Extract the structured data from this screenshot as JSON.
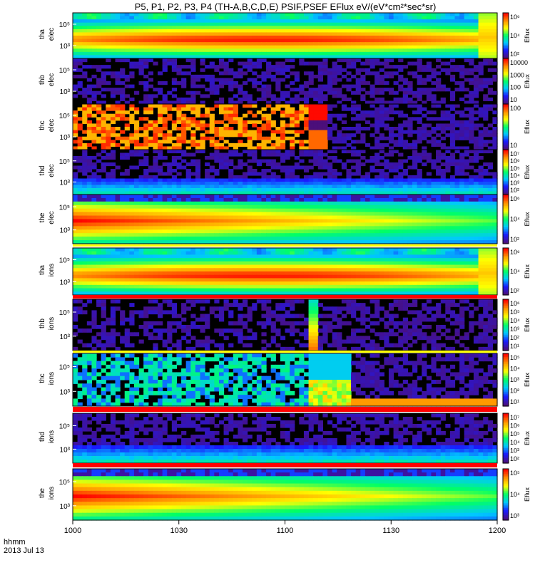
{
  "chart_data": {
    "type": "heatmap",
    "title": "P5, P1, P2, P3, P4  (TH-A,B,C,D,E) PSIF,PSEF EFlux eV/(eV*cm²*sec*sr)",
    "x_axis": {
      "ticks": [
        "1000",
        "1030",
        "1100",
        "1130",
        "1200"
      ],
      "range": [
        "10:00",
        "12:00"
      ],
      "label_line1": "hhmm",
      "label_line2": "2013 Jul 13"
    },
    "colors": {
      "scale": [
        "#4b0f7a",
        "#1a1aff",
        "#00c8ff",
        "#00ff66",
        "#ffff00",
        "#ff9000",
        "#ff0000"
      ]
    },
    "panels": [
      {
        "name": "tha elec",
        "ylabel": [
          "tha",
          "elec"
        ],
        "yticks": [
          "10⁵",
          "10³"
        ],
        "colorbar_ticks": [
          "10⁶",
          "10⁴",
          "10²"
        ],
        "colorbar_label": "Eflux",
        "pattern": "smooth-hot-center"
      },
      {
        "name": "thb elec",
        "ylabel": [
          "thb",
          "elec"
        ],
        "yticks": [
          "10⁵",
          "10³"
        ],
        "colorbar_ticks": [
          "10000",
          "1000",
          "100",
          "10"
        ],
        "colorbar_label": "Eflux",
        "pattern": "sparse-purple"
      },
      {
        "name": "thc elec",
        "ylabel": [
          "thc",
          "elec"
        ],
        "yticks": [
          "10⁵",
          "10³"
        ],
        "colorbar_ticks": [
          "100",
          "10"
        ],
        "colorbar_label": "Eflux",
        "pattern": "yellow-orange-blocks"
      },
      {
        "name": "thd elec",
        "ylabel": [
          "thd",
          "elec"
        ],
        "yticks": [
          "10⁵",
          "10³"
        ],
        "colorbar_ticks": [
          "10⁷",
          "10⁶",
          "10⁵",
          "10⁴",
          "10³",
          "10²"
        ],
        "colorbar_label": "Eflux",
        "pattern": "purple-blue-bottom"
      },
      {
        "name": "the elec",
        "ylabel": [
          "the",
          "elec"
        ],
        "yticks": [
          "10⁵",
          "10³"
        ],
        "colorbar_ticks": [
          "10⁶",
          "10⁴",
          "10²"
        ],
        "colorbar_label": "Eflux",
        "pattern": "red-left-green-right"
      },
      {
        "name": "tha ions",
        "ylabel": [
          "tha",
          "ions"
        ],
        "yticks": [
          "10⁵",
          "10³"
        ],
        "colorbar_ticks": [
          "10⁶",
          "10⁴",
          "10²"
        ],
        "colorbar_label": "Eflux",
        "pattern": "smooth-hot-center"
      },
      {
        "name": "thb ions",
        "ylabel": [
          "thb",
          "ions"
        ],
        "yticks": [
          "10⁵",
          "10³"
        ],
        "colorbar_ticks": [
          "10⁶",
          "10⁵",
          "10⁴",
          "10³",
          "10²",
          "10¹"
        ],
        "colorbar_label": "Eflux",
        "pattern": "sparse-purple-ions"
      },
      {
        "name": "thc ions",
        "ylabel": [
          "thc",
          "ions"
        ],
        "yticks": [
          "10⁵",
          "10³"
        ],
        "colorbar_ticks": [
          "10⁵",
          "10⁴",
          "10³",
          "10²",
          "10¹"
        ],
        "colorbar_label": "Eflux",
        "pattern": "cyan-stripes"
      },
      {
        "name": "thd ions",
        "ylabel": [
          "thd",
          "ions"
        ],
        "yticks": [
          "10⁵",
          "10³"
        ],
        "colorbar_ticks": [
          "10⁷",
          "10⁶",
          "10⁵",
          "10⁴",
          "10³",
          "10²"
        ],
        "colorbar_label": "Eflux",
        "pattern": "purple-blue-bottom"
      },
      {
        "name": "the ions",
        "ylabel": [
          "the",
          "ions"
        ],
        "yticks": [
          "10⁵",
          "10³"
        ],
        "colorbar_ticks": [
          "10⁵",
          "10⁴",
          "10³"
        ],
        "colorbar_label": "Eflux",
        "pattern": "red-left-green-right"
      }
    ]
  }
}
